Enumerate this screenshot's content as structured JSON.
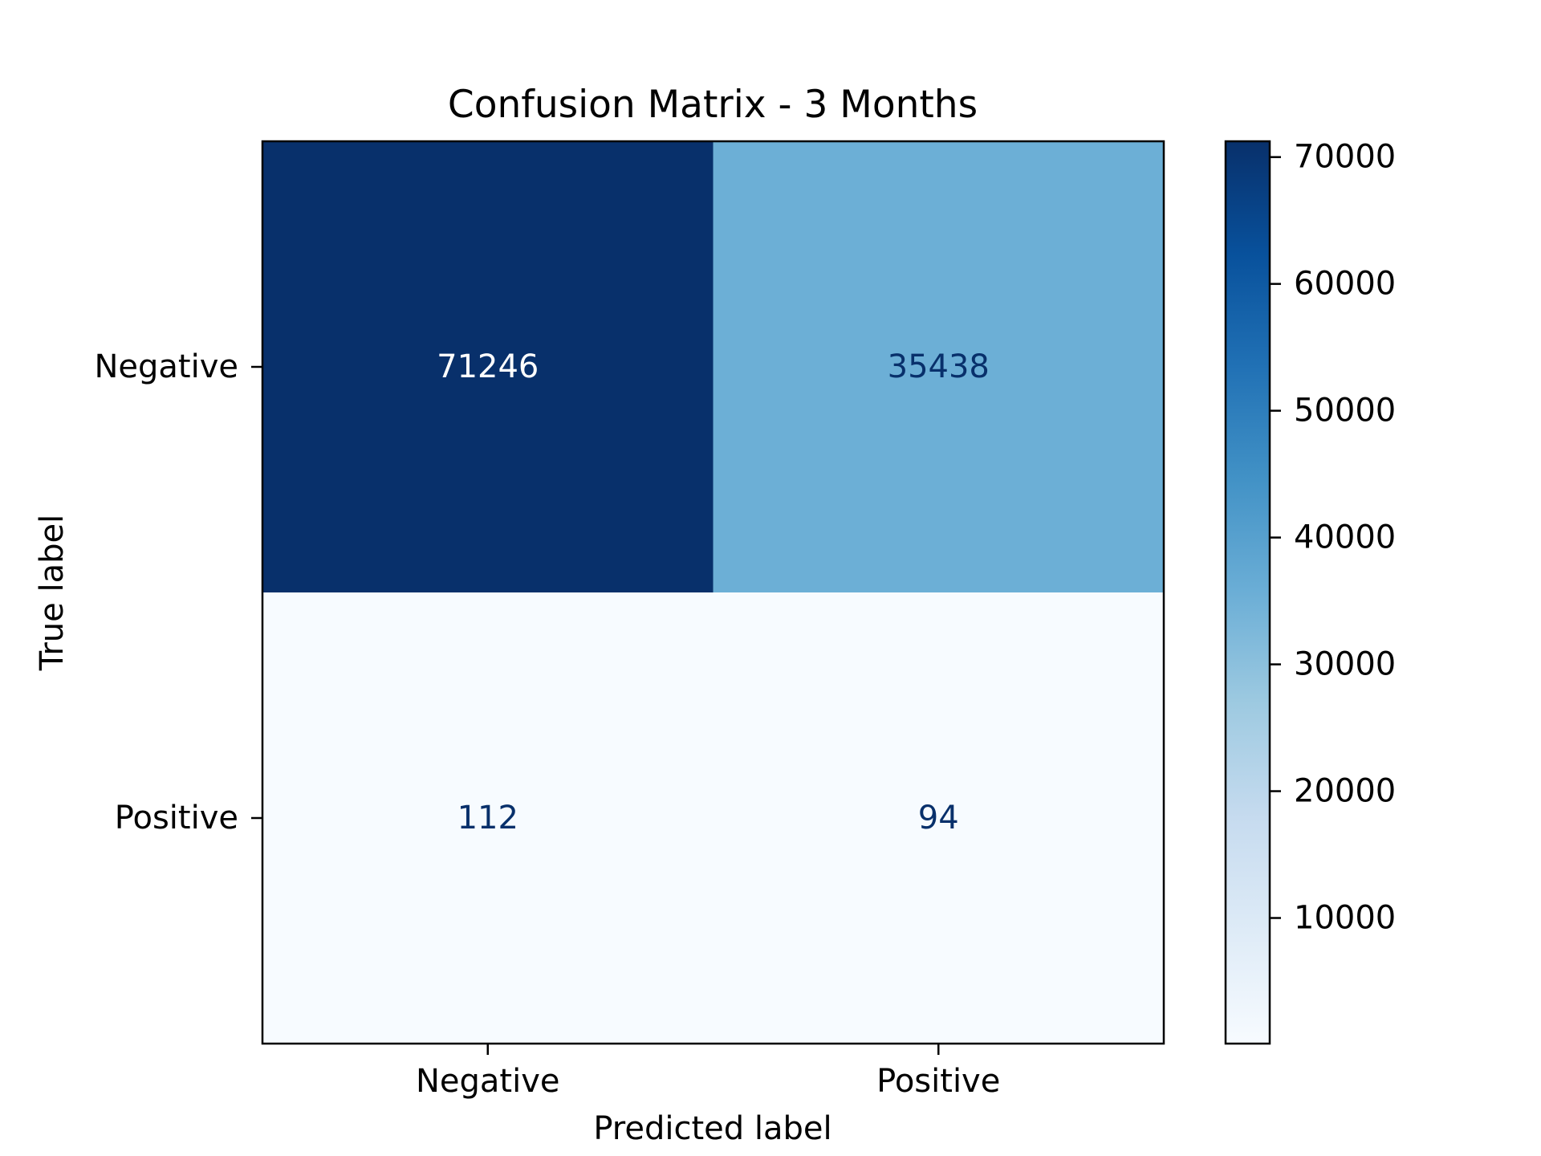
{
  "chart_data": {
    "type": "heatmap",
    "title": "Confusion Matrix - 3 Months",
    "xlabel": "Predicted label",
    "ylabel": "True label",
    "x_categories": [
      "Negative",
      "Positive"
    ],
    "y_categories": [
      "Negative",
      "Positive"
    ],
    "values": [
      [
        71246,
        35438
      ],
      [
        112,
        94
      ]
    ],
    "colormap": "Blues",
    "colorbar": {
      "min": 94,
      "max": 71246,
      "ticks": [
        10000,
        20000,
        30000,
        40000,
        50000,
        60000,
        70000
      ],
      "tick_labels": [
        "10000",
        "20000",
        "30000",
        "40000",
        "50000",
        "60000",
        "70000"
      ]
    },
    "cell_text_colors": {
      "dark_cell": "#ffffff",
      "light_cell": "#08306b"
    }
  }
}
